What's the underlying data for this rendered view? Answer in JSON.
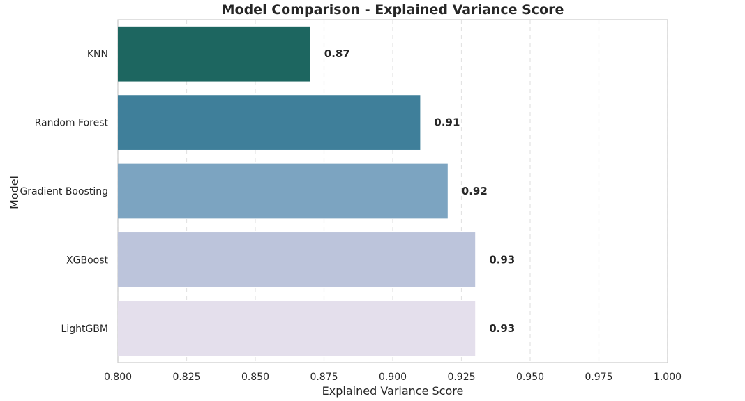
{
  "chart_data": {
    "type": "bar",
    "orientation": "horizontal",
    "title": "Model Comparison - Explained Variance Score",
    "xlabel": "Explained Variance Score",
    "ylabel": "Model",
    "xlim": [
      0.8,
      1.0
    ],
    "xticks": [
      0.8,
      0.825,
      0.85,
      0.875,
      0.9,
      0.925,
      0.95,
      0.975,
      1.0
    ],
    "xtick_labels": [
      "0.800",
      "0.825",
      "0.850",
      "0.875",
      "0.900",
      "0.925",
      "0.950",
      "0.975",
      "1.000"
    ],
    "grid": "vertical dashed",
    "legend": "none",
    "categories": [
      "KNN",
      "Random Forest",
      "Gradient Boosting",
      "XGBoost",
      "LightGBM"
    ],
    "values": [
      0.87,
      0.91,
      0.92,
      0.93,
      0.93
    ],
    "value_labels": [
      "0.87",
      "0.91",
      "0.92",
      "0.93",
      "0.93"
    ],
    "colors": [
      "#1d6660",
      "#3f7f9a",
      "#7ca4c1",
      "#bcc4db",
      "#e4dfec"
    ]
  }
}
